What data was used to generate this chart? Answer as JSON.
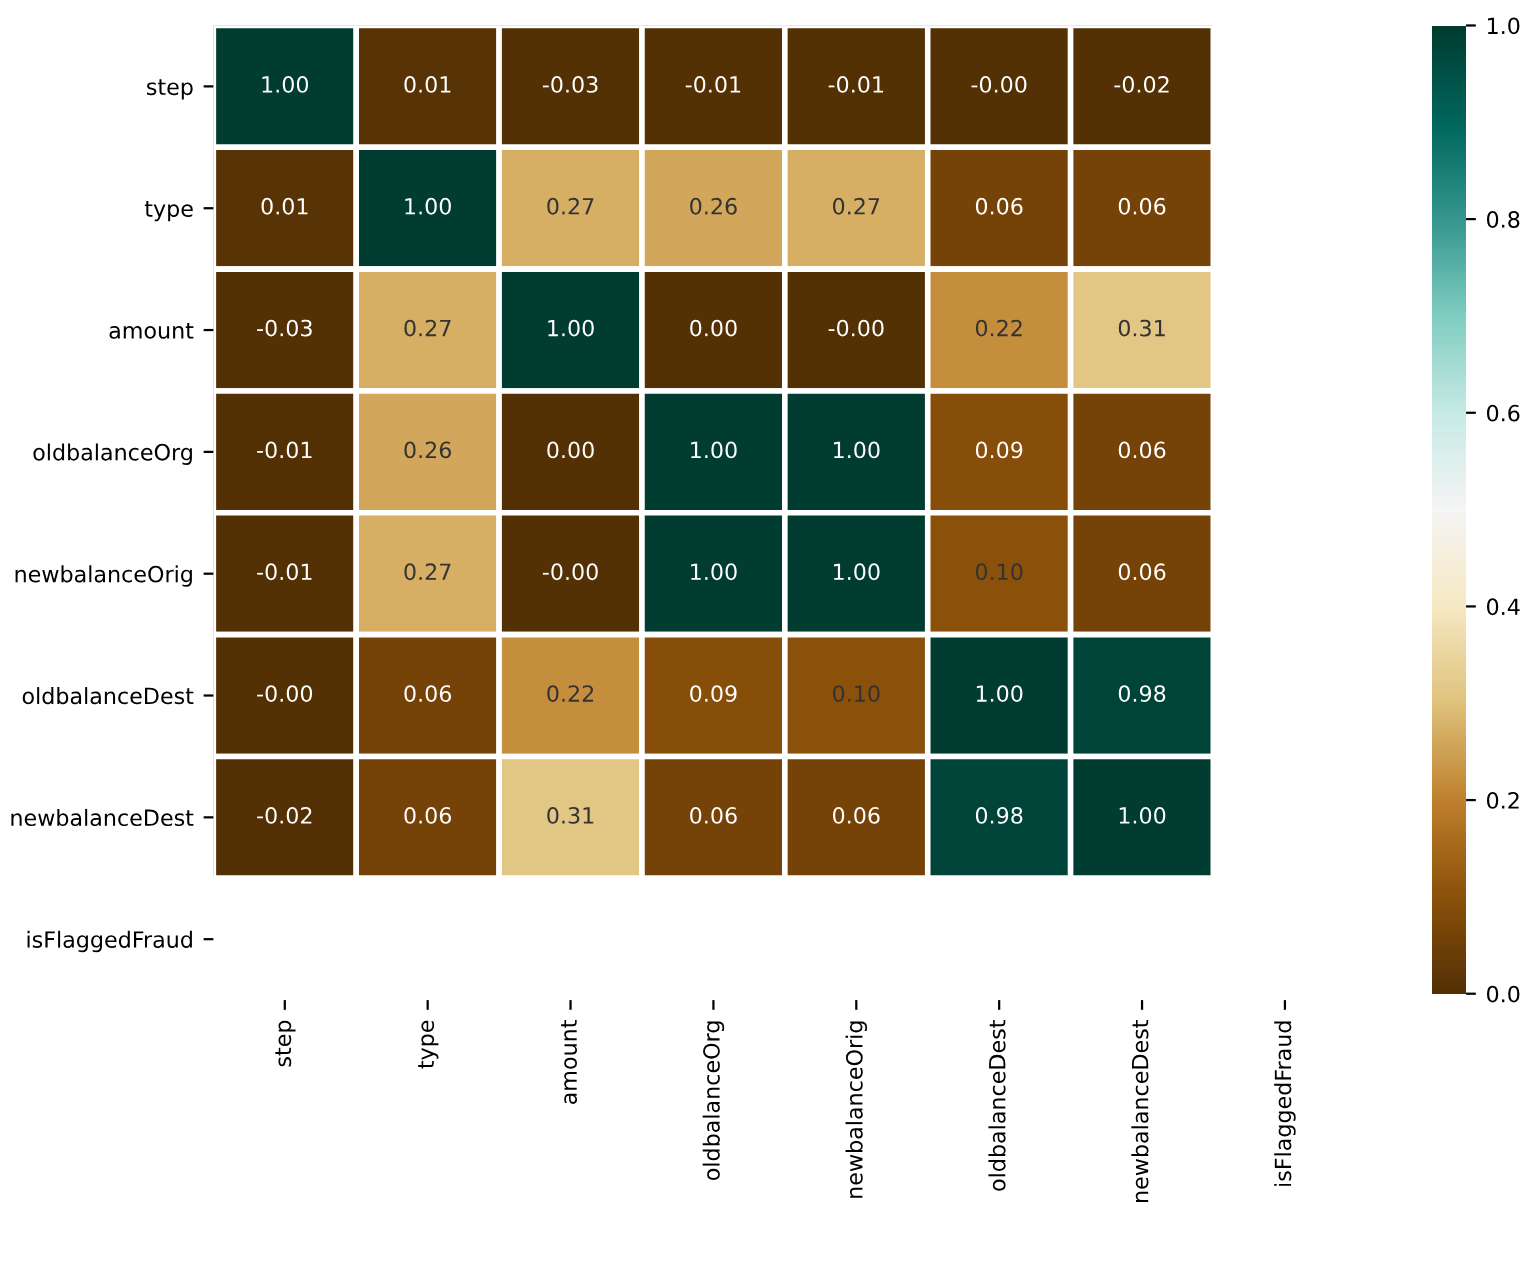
{
  "chart_data": {
    "type": "heatmap",
    "categories": [
      "step",
      "type",
      "amount",
      "oldbalanceOrg",
      "newbalanceOrig",
      "oldbalanceDest",
      "newbalanceDest",
      "isFlaggedFraud"
    ],
    "y_categories": [
      "step",
      "type",
      "amount",
      "oldbalanceOrg",
      "newbalanceOrig",
      "oldbalanceDest",
      "newbalanceDest",
      "isFlaggedFraud"
    ],
    "cells": [
      [
        1.0,
        0.01,
        -0.03,
        -0.01,
        -0.01,
        0.0,
        -0.02,
        null
      ],
      [
        0.01,
        1.0,
        0.27,
        0.26,
        0.27,
        0.06,
        0.06,
        null
      ],
      [
        -0.03,
        0.27,
        1.0,
        0.0,
        0.0,
        0.22,
        0.31,
        null
      ],
      [
        -0.01,
        0.26,
        0.0,
        1.0,
        1.0,
        0.09,
        0.06,
        null
      ],
      [
        -0.01,
        0.27,
        0.0,
        1.0,
        1.0,
        0.1,
        0.06,
        null
      ],
      [
        0.0,
        0.06,
        0.22,
        0.09,
        0.1,
        1.0,
        0.98,
        null
      ],
      [
        -0.02,
        0.06,
        0.31,
        0.06,
        0.06,
        0.98,
        1.0,
        null
      ],
      [
        null,
        null,
        null,
        null,
        null,
        null,
        null,
        null
      ]
    ],
    "cell_labels": [
      [
        "1.00",
        "0.01",
        "-0.03",
        "-0.01",
        "-0.01",
        "-0.00",
        "-0.02",
        null
      ],
      [
        "0.01",
        "1.00",
        "0.27",
        "0.26",
        "0.27",
        "0.06",
        "0.06",
        null
      ],
      [
        "-0.03",
        "0.27",
        "1.00",
        "0.00",
        "-0.00",
        "0.22",
        "0.31",
        null
      ],
      [
        "-0.01",
        "0.26",
        "0.00",
        "1.00",
        "1.00",
        "0.09",
        "0.06",
        null
      ],
      [
        "-0.01",
        "0.27",
        "-0.00",
        "1.00",
        "1.00",
        "0.10",
        "0.06",
        null
      ],
      [
        "-0.00",
        "0.06",
        "0.22",
        "0.09",
        "0.10",
        "1.00",
        "0.98",
        null
      ],
      [
        "-0.02",
        "0.06",
        "0.31",
        "0.06",
        "0.06",
        "0.98",
        "1.00",
        null
      ],
      [
        null,
        null,
        null,
        null,
        null,
        null,
        null,
        null
      ]
    ],
    "clim": [
      0,
      1
    ],
    "cticks": [
      {
        "value": 0,
        "label": "0.0"
      },
      {
        "value": 0.2,
        "label": "0.2"
      },
      {
        "value": 0.4,
        "label": "0.4"
      },
      {
        "value": 0.6,
        "label": "0.6"
      },
      {
        "value": 0.8,
        "label": "0.8"
      },
      {
        "value": 1,
        "label": "1.0"
      }
    ]
  }
}
